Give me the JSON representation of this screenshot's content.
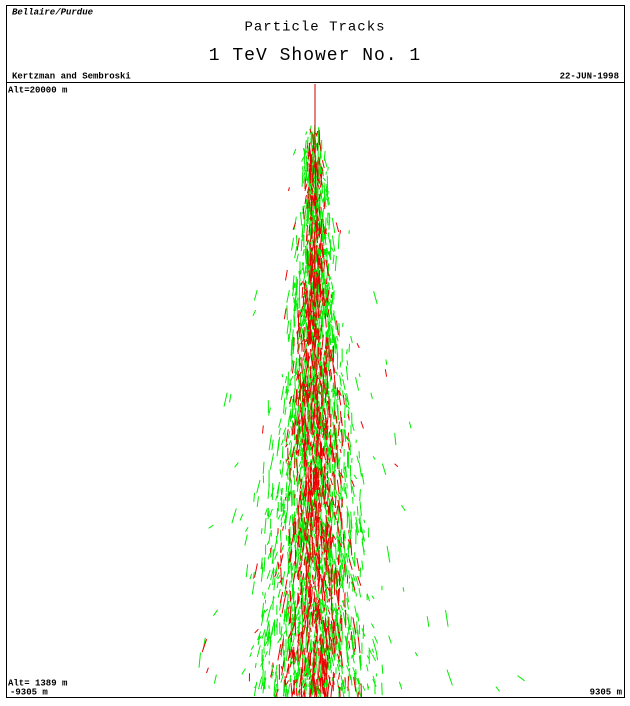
{
  "header": {
    "institution": "Bellaire/Purdue",
    "title": "Particle Tracks",
    "subtitle": "1 TeV Shower No. 1",
    "authors": "Kertzman and Sembroski",
    "date": "22-JUN-1998"
  },
  "plot": {
    "top_label": "Alt=20000 m",
    "bottom_label": "Alt= 1389 m",
    "left_label": "-9305 m",
    "right_label": "9305 m"
  }
}
